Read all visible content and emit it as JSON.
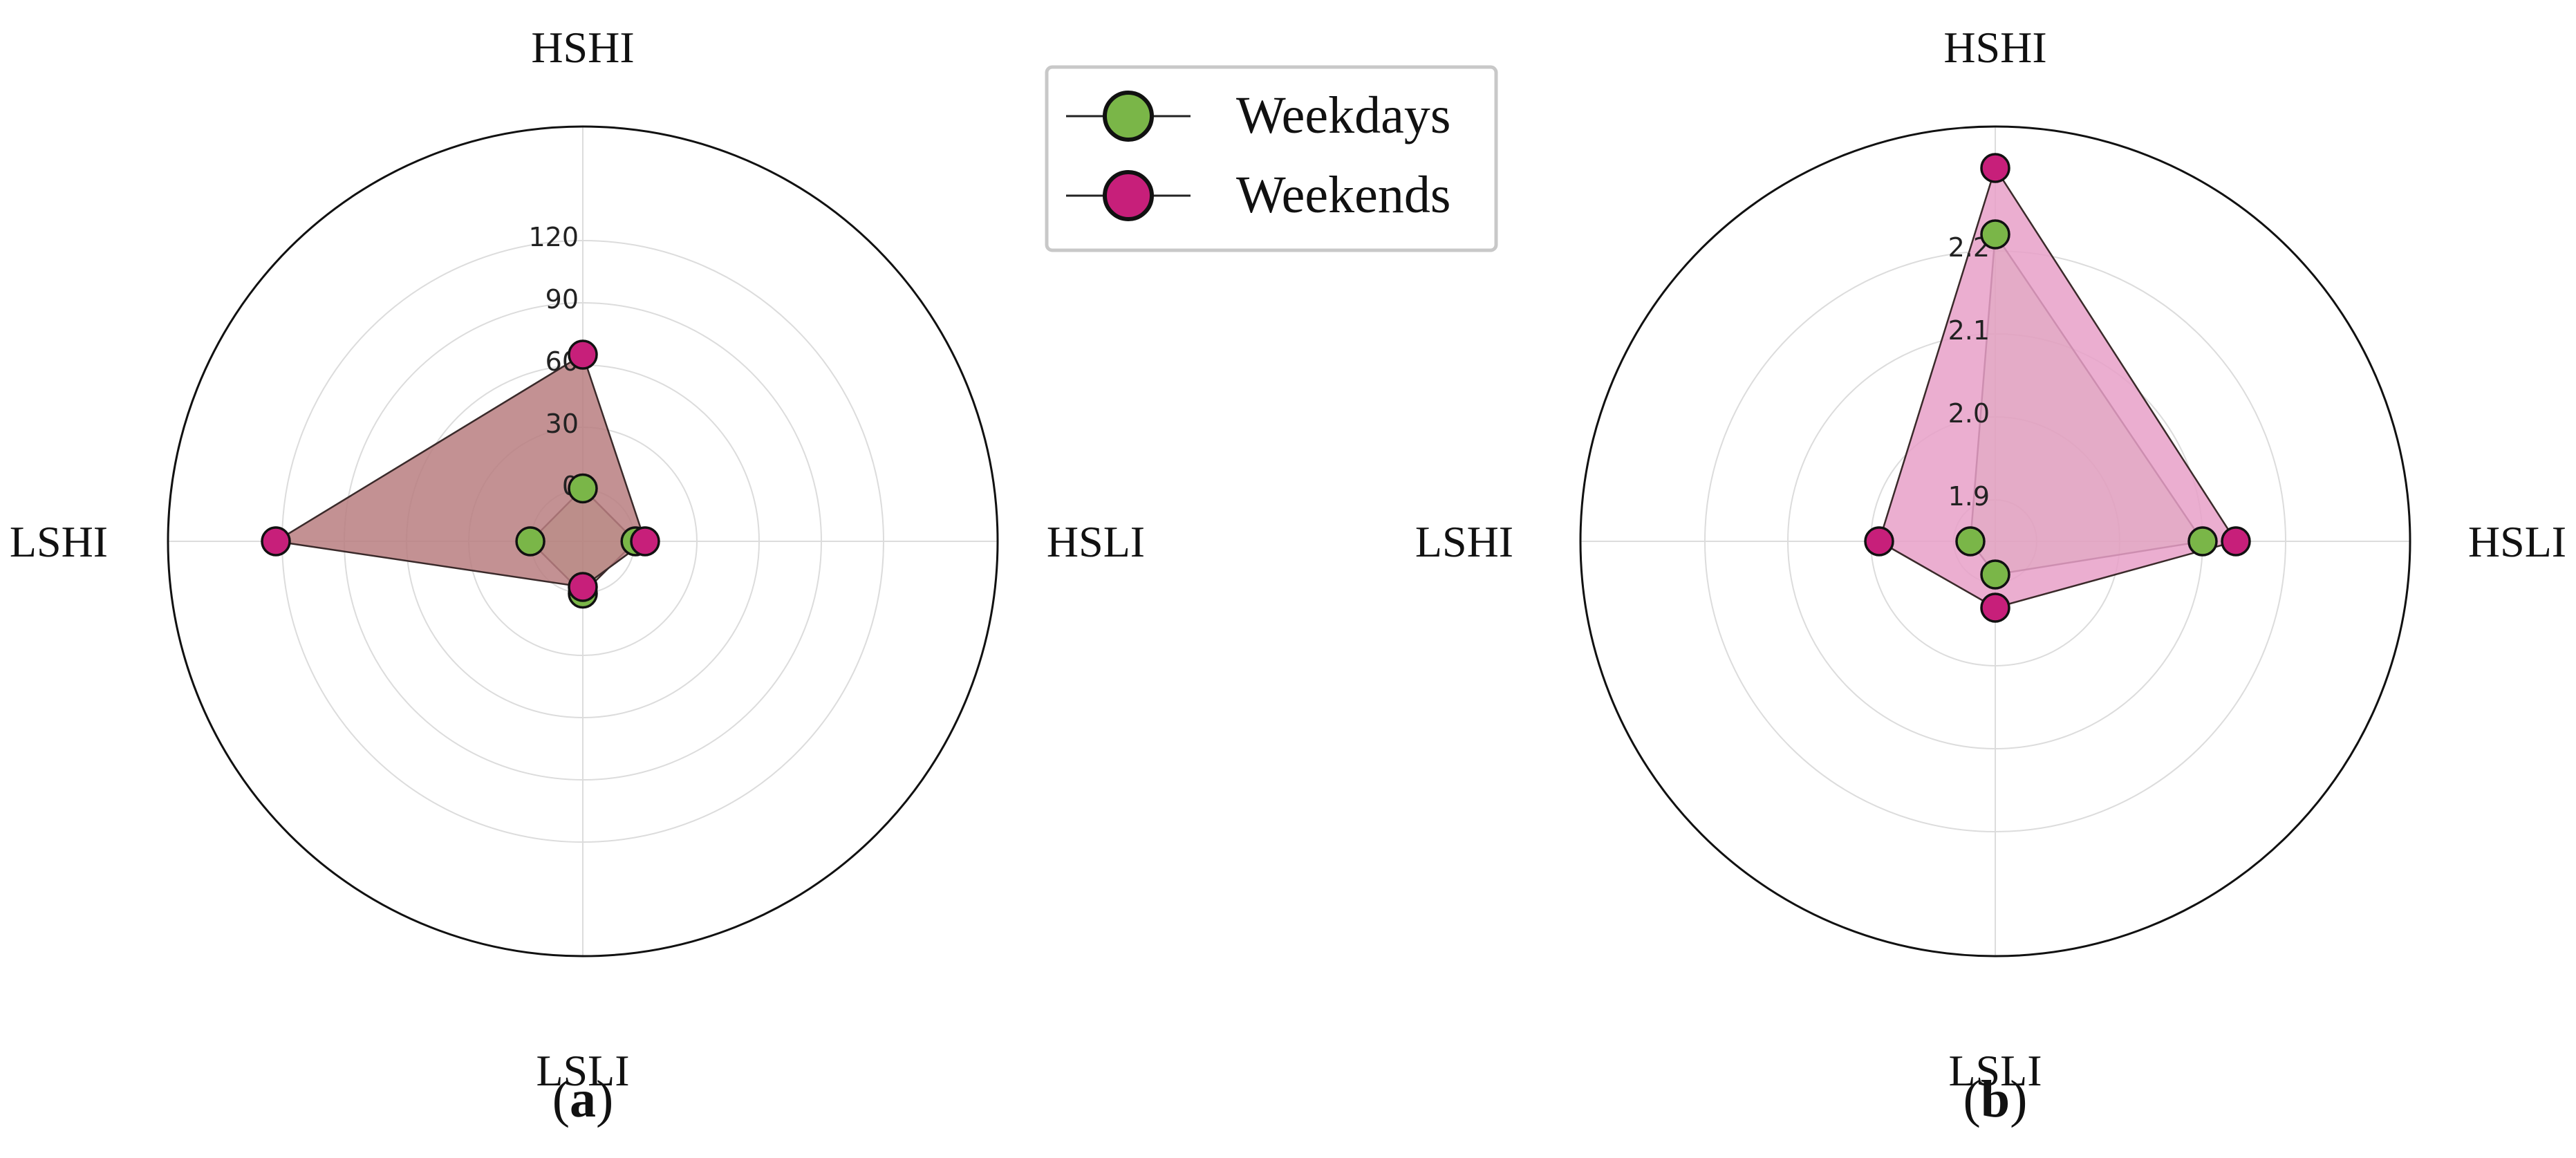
{
  "chart_data": [
    {
      "type": "radar",
      "panel_label": "a",
      "axes": [
        "HSHI",
        "HSLI",
        "LSLI",
        "LSHI"
      ],
      "rlim": [
        -25,
        175
      ],
      "rticks": [
        0,
        30,
        60,
        90,
        120
      ],
      "rtick_labels": [
        "0",
        "30",
        "60",
        "90",
        "120"
      ],
      "series": [
        {
          "values": [
            0.5,
            0.4,
            0.2,
            0.3
          ],
          "color": "#7ab648"
        },
        {
          "values": [
            65,
            5,
            -3,
            123
          ],
          "color": "#c71f7a",
          "fill": "#b87e80"
        }
      ]
    },
    {
      "type": "radar",
      "panel_label": "b",
      "axes": [
        "HSHI",
        "HSLI",
        "LSLI",
        "LSHI"
      ],
      "rlim": [
        1.85,
        2.35
      ],
      "rticks": [
        1.9,
        2.0,
        2.1,
        2.2
      ],
      "rtick_labels": [
        "1.9",
        "2.0",
        "2.1",
        "2.2"
      ],
      "series": [
        {
          "name": "Weekdays",
          "values": [
            2.22,
            2.1,
            1.89,
            1.88
          ],
          "color": "#7ab648"
        },
        {
          "name": "Weekends",
          "values": [
            2.3,
            2.14,
            1.93,
            1.99
          ],
          "color": "#c71f7a",
          "fill": "#e8a0c8"
        }
      ]
    }
  ],
  "legend": {
    "placement": "top-center",
    "entries": [
      {
        "label": "Weekdays",
        "color": "#7ab648"
      },
      {
        "label": "Weekends",
        "color": "#c71f7a"
      }
    ]
  }
}
